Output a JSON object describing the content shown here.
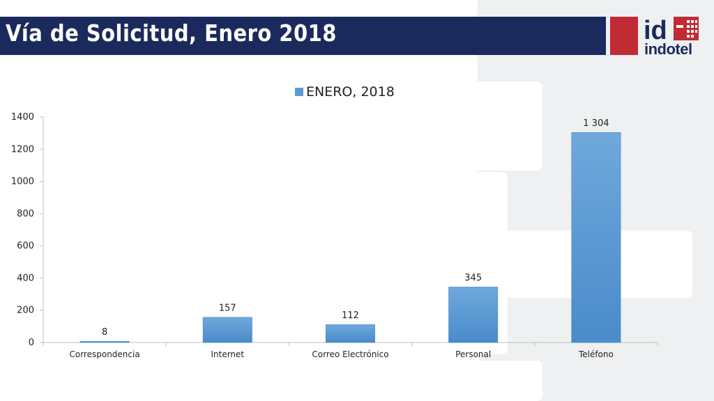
{
  "header": {
    "title": "Vía de Solicitud, Enero 2018"
  },
  "logo": {
    "text": "indotel",
    "brand_color": "#c12b35",
    "navy": "#1b2a5c"
  },
  "chart_data": {
    "type": "bar",
    "categories": [
      "Correspondencia",
      "Internet",
      "Correo Electrónico",
      "Personal",
      "Teléfono"
    ],
    "series": [
      {
        "name": "ENERO, 2018",
        "values": [
          8,
          157,
          112,
          345,
          1304
        ],
        "labels": [
          "8",
          "157",
          "112",
          "345",
          "1 304"
        ],
        "color": "#5b9bd5"
      }
    ],
    "ylim": [
      0,
      1400
    ],
    "yticks": [
      0,
      200,
      400,
      600,
      800,
      1000,
      1200,
      1400
    ],
    "legend": "top",
    "grid": false
  }
}
